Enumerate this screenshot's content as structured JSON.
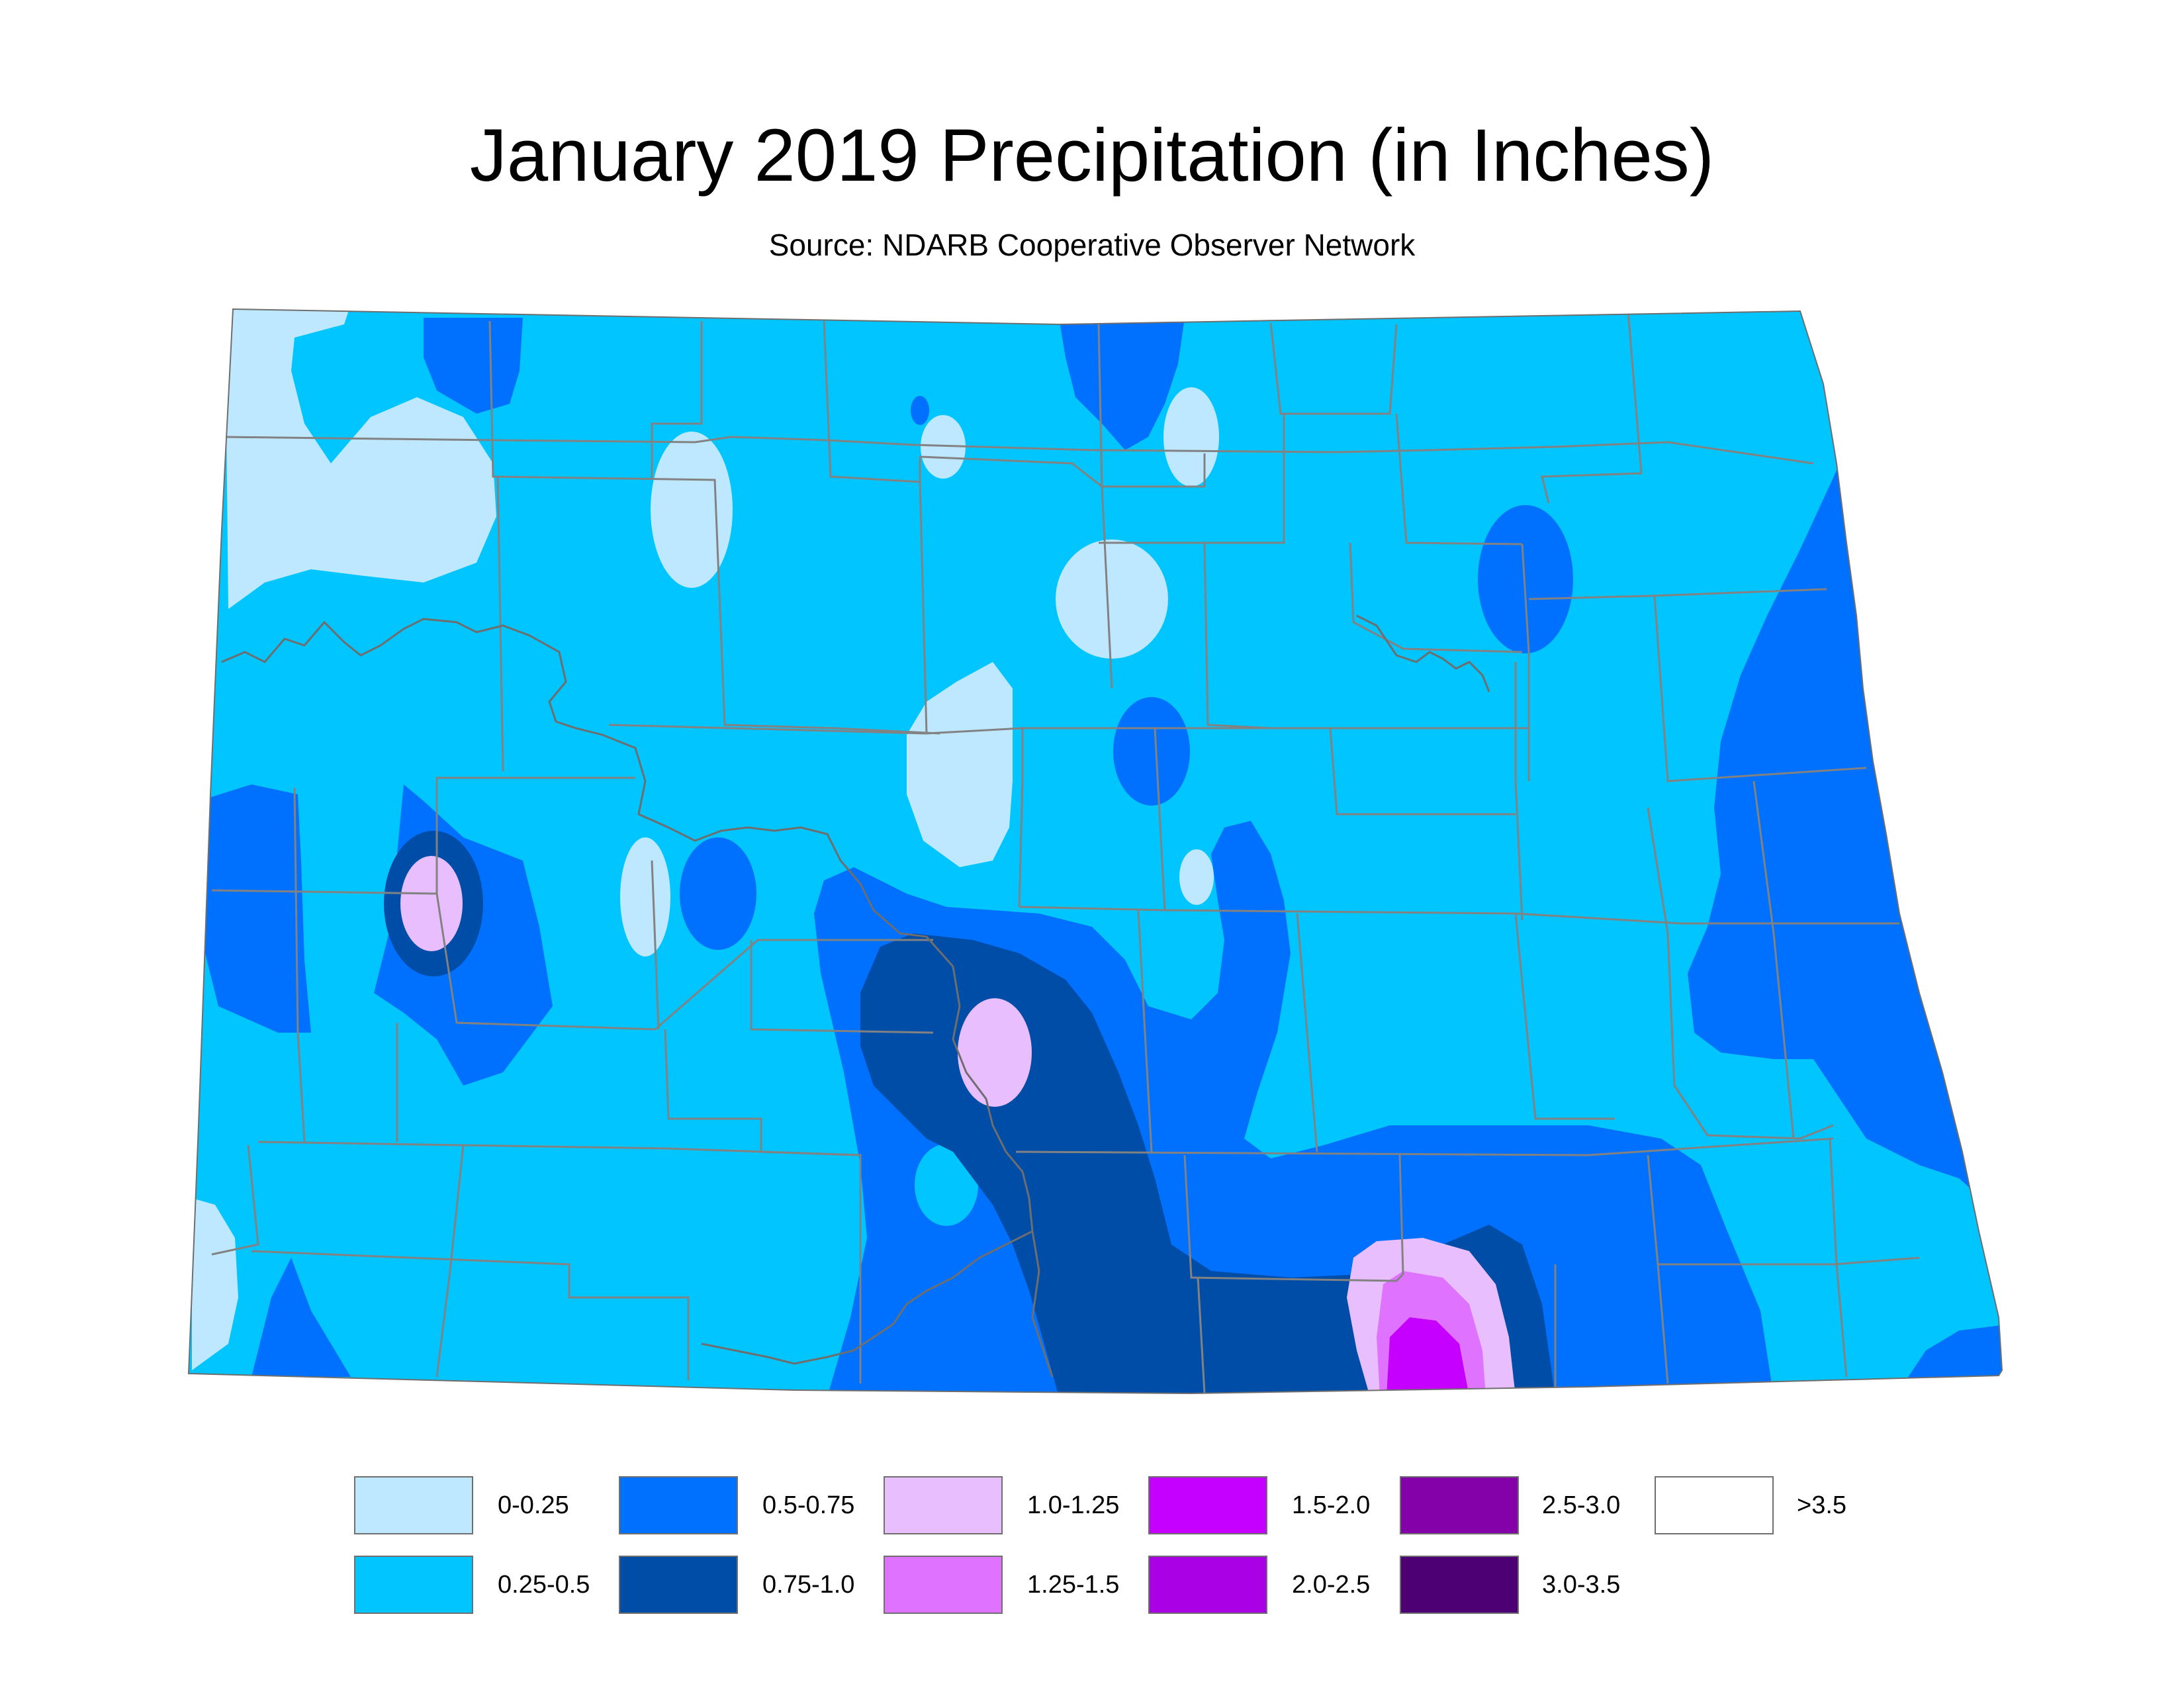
{
  "header": {
    "title": "January 2019 Precipitation (in Inches)",
    "subtitle": "Source: NDARB Cooperative Observer Network"
  },
  "colors": {
    "bin_0_025": "#BEE8FF",
    "bin_025_05": "#00C5FF",
    "bin_05_075": "#0070FF",
    "bin_075_10": "#004DA8",
    "bin_10_125": "#E8BEFF",
    "bin_125_15": "#DF73FF",
    "bin_15_20": "#C500FF",
    "bin_20_25": "#A900E6",
    "bin_25_30": "#8400A8",
    "bin_30_35": "#4C0073",
    "bin_gt_35": "#FFFFFF",
    "county_lines": "#828282",
    "river": "#6E6E6E"
  },
  "legend": {
    "items": [
      {
        "label": "0-0.25",
        "color": "#BEE8FF"
      },
      {
        "label": "0.25-0.5",
        "color": "#00C5FF"
      },
      {
        "label": "0.5-0.75",
        "color": "#0070FF"
      },
      {
        "label": "0.75-1.0",
        "color": "#004DA8"
      },
      {
        "label": "1.0-1.25",
        "color": "#E8BEFF"
      },
      {
        "label": "1.25-1.5",
        "color": "#DF73FF"
      },
      {
        "label": "1.5-2.0",
        "color": "#C500FF"
      },
      {
        "label": "2.0-2.5",
        "color": "#A900E6"
      },
      {
        "label": "2.5-3.0",
        "color": "#8400A8"
      },
      {
        "label": "3.0-3.5",
        "color": "#4C0073"
      },
      {
        "label": ">3.5",
        "color": "#FFFFFF"
      }
    ]
  }
}
